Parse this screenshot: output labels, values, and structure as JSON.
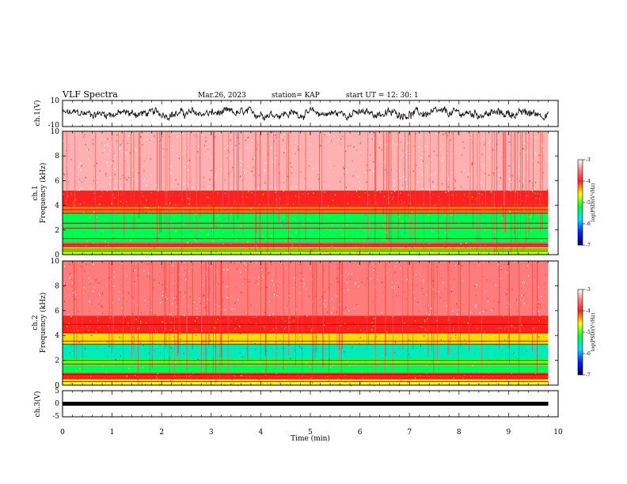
{
  "header": {
    "title": "VLF Spectra",
    "date": "Mar.26, 2023",
    "station": "station= KAP",
    "start": "start  UT  =   12: 30: 1"
  },
  "chart_data": [
    {
      "type": "line",
      "panel": "ch1-waveform",
      "ylabel": "ch.1(V)",
      "yticks": [
        "10",
        "-10"
      ],
      "ylim": [
        -10,
        10
      ],
      "xlim": [
        0,
        10
      ],
      "data_extent_min": 9.8,
      "amplitude_range": [
        -5,
        5
      ]
    },
    {
      "type": "heatmap",
      "panel": "ch1-spectrogram",
      "ylabel_line1": "ch.1",
      "ylabel_line2": "Frequency (kHz)",
      "yticks": [
        "0",
        "2",
        "4",
        "6",
        "8",
        "10"
      ],
      "ylim": [
        0,
        10
      ],
      "xlim": [
        0,
        10
      ],
      "data_extent_min": 9.8,
      "colorbar": {
        "label": "log(PSD)(V²/Hz)",
        "ticks": [
          "-3",
          "-4",
          "-5",
          "-6",
          "-7"
        ],
        "range": [
          -7,
          -3
        ]
      },
      "bands": [
        {
          "f": [
            0,
            0.6
          ],
          "level": -4.8
        },
        {
          "f": [
            0.6,
            1.0
          ],
          "level": -3.8
        },
        {
          "f": [
            1.0,
            3.4
          ],
          "level": -5.3
        },
        {
          "f": [
            3.4,
            4.0
          ],
          "level": -4.2
        },
        {
          "f": [
            4.0,
            5.2
          ],
          "level": -4.0
        },
        {
          "f": [
            5.2,
            10.0
          ],
          "level": -3.3
        }
      ],
      "lines_khz": [
        0.3,
        0.45,
        0.65,
        0.8,
        1.3,
        2.15,
        2.55,
        3.35,
        3.65,
        3.95
      ]
    },
    {
      "type": "heatmap",
      "panel": "ch2-spectrogram",
      "ylabel_line1": "ch.2",
      "ylabel_line2": "Frequency (kHz)",
      "yticks": [
        "0",
        "2",
        "4",
        "6",
        "8",
        "10"
      ],
      "ylim": [
        0,
        10
      ],
      "xlim": [
        0,
        10
      ],
      "data_extent_min": 9.8,
      "colorbar": {
        "label": "log(PSD)(V²/Hz)",
        "ticks": [
          "-3",
          "-4",
          "-5",
          "-6",
          "-7"
        ],
        "range": [
          -7,
          -3
        ]
      },
      "bands": [
        {
          "f": [
            0,
            0.5
          ],
          "level": -4.6
        },
        {
          "f": [
            0.5,
            1.0
          ],
          "level": -4.0
        },
        {
          "f": [
            1.0,
            1.6
          ],
          "level": -5.3
        },
        {
          "f": [
            1.6,
            2.1
          ],
          "level": -5.0
        },
        {
          "f": [
            2.1,
            3.3
          ],
          "level": -5.6
        },
        {
          "f": [
            3.3,
            4.2
          ],
          "level": -4.5
        },
        {
          "f": [
            4.2,
            5.6
          ],
          "level": -4.0
        },
        {
          "f": [
            5.6,
            10.0
          ],
          "level": -3.5
        }
      ],
      "lines_khz": [
        0.3,
        0.5,
        0.85,
        1.7,
        2.0,
        3.3,
        3.55,
        4.2,
        4.9
      ]
    },
    {
      "type": "line",
      "panel": "ch3-waveform",
      "ylabel": "ch.3(V)",
      "yticks": [
        "5",
        "0",
        "-5"
      ],
      "ylim": [
        -5,
        5
      ],
      "xlim": [
        0,
        10
      ],
      "data_extent_min": 9.8,
      "amplitude_range": [
        -0.3,
        0.3
      ]
    }
  ],
  "x_axis": {
    "xlabel": "Time  (min)",
    "ticks": [
      "0",
      "1",
      "2",
      "3",
      "4",
      "5",
      "6",
      "7",
      "8",
      "9",
      "10"
    ]
  }
}
